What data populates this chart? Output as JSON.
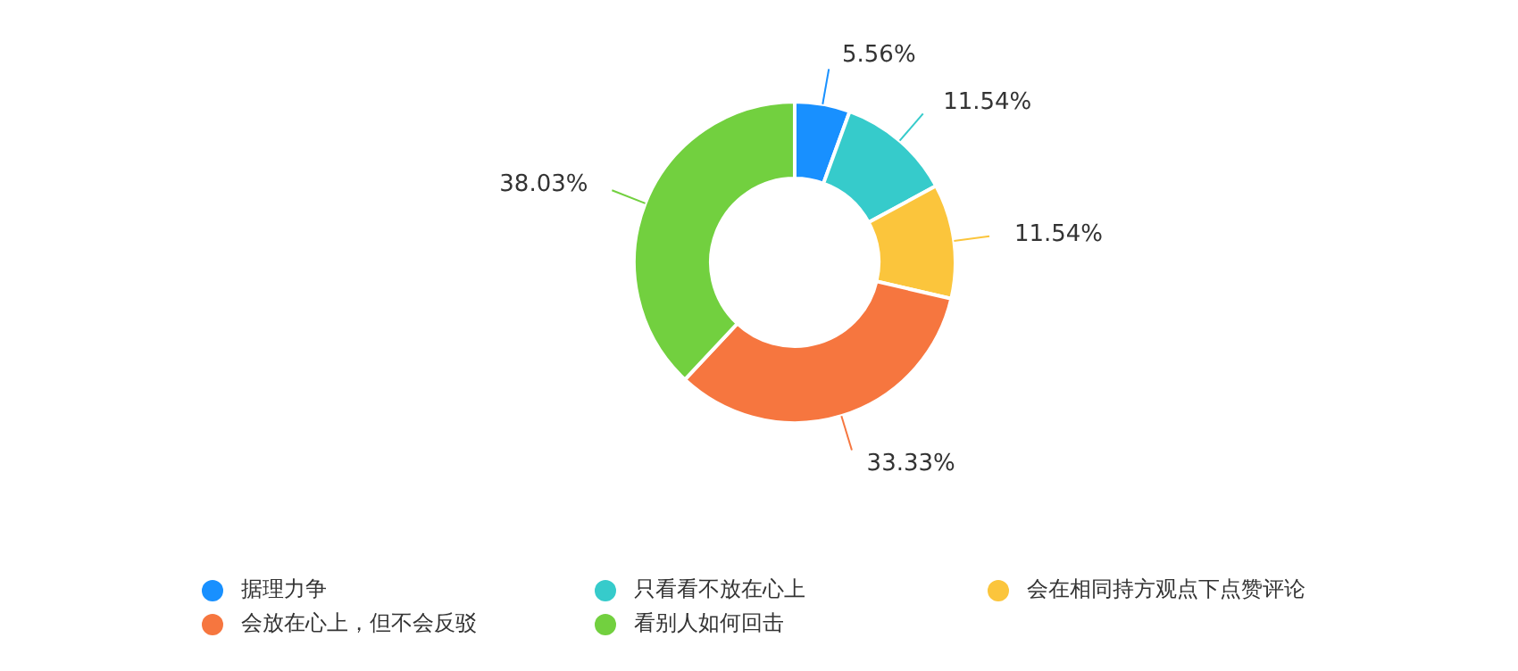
{
  "chart_data": {
    "type": "donut",
    "categories": [
      "据理力争",
      "只看看不放在心上",
      "会在相同持方观点下点赞评论",
      "会放在心上，但不会反驳",
      "看别人如何回击"
    ],
    "values": [
      5.56,
      11.54,
      11.54,
      33.33,
      38.03
    ],
    "value_labels": [
      "5.56%",
      "11.54%",
      "11.54%",
      "33.33%",
      "38.03%"
    ],
    "colors": [
      "#1890ff",
      "#36cbcb",
      "#fbc53c",
      "#f6763f",
      "#72d03f"
    ],
    "legend": "bottom"
  }
}
